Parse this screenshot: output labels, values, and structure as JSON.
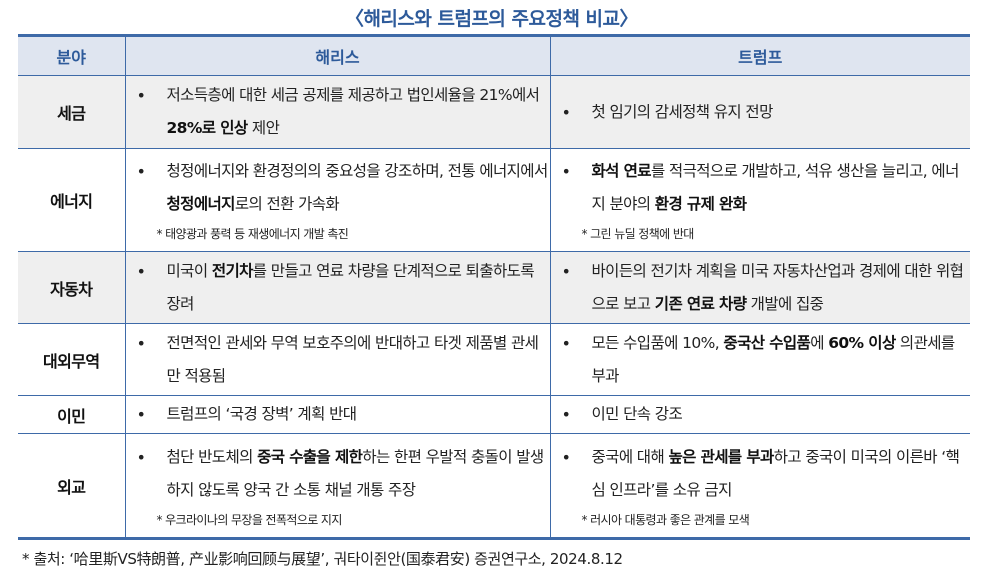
{
  "title": "〈해리스와 트럼프의 주요정책 비교〉",
  "headers": [
    "분야",
    "해리스",
    "트럼프"
  ],
  "rows": [
    {
      "category": "세금",
      "shaded": true,
      "harris": {
        "text": [
          {
            "t": "저소득층에 대한 세금 공제를 제공하고 법인세율을 21%에서 "
          },
          {
            "t": "28%로 인상",
            "b": true
          },
          {
            "t": " 제안"
          }
        ]
      },
      "trump": {
        "text": [
          {
            "t": "첫 임기의 감세정책 유지 전망"
          }
        ]
      }
    },
    {
      "category": "에너지",
      "shaded": false,
      "harris": {
        "text": [
          {
            "t": "청정에너지와 환경정의의 중요성을 강조하며, 전통 에너지에서 "
          },
          {
            "t": "청정에너지",
            "b": true
          },
          {
            "t": "로의 전환 가속화"
          }
        ],
        "note": "* 태양광과 풍력 등 재생에너지 개발 촉진"
      },
      "trump": {
        "text": [
          {
            "t": "화석 연료",
            "b": true
          },
          {
            "t": "를 적극적으로 개발하고, 석유 생산을 늘리고, 에너지 분야의 "
          },
          {
            "t": "환경 규제 완화",
            "b": true
          }
        ],
        "note": "* 그린 뉴딜 정책에 반대"
      }
    },
    {
      "category": "자동차",
      "shaded": true,
      "harris": {
        "text": [
          {
            "t": "미국이 "
          },
          {
            "t": "전기차",
            "b": true
          },
          {
            "t": "를 만들고 연료 차량을 단계적으로 퇴출하도록 장려"
          }
        ]
      },
      "trump": {
        "text": [
          {
            "t": "바이든의 전기차 계획을 미국 자동차산업과 경제에 대한 위협으로 보고 "
          },
          {
            "t": "기존 연료 차량",
            "b": true
          },
          {
            "t": " 개발에 집중"
          }
        ]
      }
    },
    {
      "category": "대외무역",
      "shaded": false,
      "harris": {
        "text": [
          {
            "t": "전면적인 관세와 무역 보호주의에 반대하고 타겟 제품별 관세만 적용됨"
          }
        ]
      },
      "trump": {
        "text": [
          {
            "t": "모든 수입품에 10%, "
          },
          {
            "t": "중국산 수입품",
            "b": true
          },
          {
            "t": "에 "
          },
          {
            "t": "60% 이상",
            "b": true
          },
          {
            "t": " 의관세를 부과"
          }
        ]
      }
    },
    {
      "category": "이민",
      "shaded": false,
      "harris": {
        "text": [
          {
            "t": "트럼프의 ‘국경 장벽’ 계획 반대"
          }
        ]
      },
      "trump": {
        "text": [
          {
            "t": "이민 단속 강조"
          }
        ]
      }
    },
    {
      "category": "외교",
      "shaded": false,
      "harris": {
        "text": [
          {
            "t": "첨단 반도체의 "
          },
          {
            "t": "중국 수출을 제한",
            "b": true
          },
          {
            "t": "하는 한편 우발적 충돌이 발생하지 않도록 양국 간 소통 채널 개통 주장"
          }
        ],
        "note": "* 우크라이나의 무장을 전폭적으로 지지"
      },
      "trump": {
        "text": [
          {
            "t": "중국에 대해 "
          },
          {
            "t": "높은 관세를 부과",
            "b": true
          },
          {
            "t": "하고 중국이 미국의 이른바 ‘핵심 인프라’를 소유 금지"
          }
        ],
        "note": "* 러시아 대통령과 좋은 관계를 모색"
      }
    }
  ],
  "footer": "* 출처: ‘哈里斯VS特朗普, 产业影响回顾与展望’, 궈타이쥔안(国泰君安) 증권연구소, 2024.8.12",
  "colors": {
    "accent": "#3e6aa8",
    "header_bg": "#dfe5f0",
    "shade_bg": "#efefef"
  }
}
